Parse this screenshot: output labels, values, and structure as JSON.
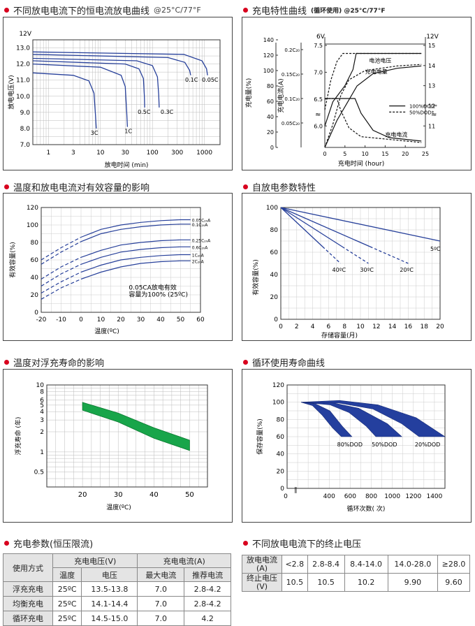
{
  "sections": {
    "s1": "不同放电电流下的恒电流放电曲线",
    "s1_suffix": "@25°C/77°F",
    "s2": "充电特性曲线",
    "s2_suffix": "(循环使用) @25°C/77°F",
    "s3": "温度和放电电流对有效容量的影响",
    "s4": "自放电参数特性",
    "s5": "温度对浮充寿命的影响",
    "s6": "循环使用寿命曲线",
    "s7": "充电参数(恒压限流)",
    "s8": "不同放电电流下的终止电压"
  },
  "chart_data": [
    {
      "id": "discharge",
      "type": "line",
      "title": "不同放电电流下的恒电流放电曲线 @25°C/77°F",
      "xlabel": "放电时间 (min)",
      "ylabel": "放电电压(V)",
      "y_unit_label": "12V",
      "x_scale": "log",
      "xlim": [
        0.5,
        2000
      ],
      "ylim": [
        7.0,
        13.5
      ],
      "xticks": [
        "1",
        "3",
        "10",
        "30",
        "100",
        "300",
        "1000"
      ],
      "yticks": [
        "7.0",
        "8.0",
        "9.0",
        "10.0",
        "11.0",
        "12.0",
        "13.0"
      ],
      "series": [
        {
          "name": "3C",
          "points": [
            [
              0.5,
              11.45
            ],
            [
              3,
              11.3
            ],
            [
              6,
              10.95
            ],
            [
              7.5,
              10.2
            ],
            [
              8,
              8.9
            ],
            [
              8.3,
              8.0
            ]
          ]
        },
        {
          "name": "1C",
          "points": [
            [
              0.5,
              12.0
            ],
            [
              10,
              11.8
            ],
            [
              25,
              11.3
            ],
            [
              30,
              10.6
            ],
            [
              32,
              9.0
            ],
            [
              33,
              8.1
            ]
          ]
        },
        {
          "name": "0.5C",
          "points": [
            [
              0.5,
              12.2
            ],
            [
              30,
              12.0
            ],
            [
              55,
              11.7
            ],
            [
              67,
              11.1
            ],
            [
              70,
              10.0
            ],
            [
              71,
              9.3
            ]
          ]
        },
        {
          "name": "0.3C",
          "points": [
            [
              0.5,
              12.35
            ],
            [
              50,
              12.2
            ],
            [
              100,
              11.9
            ],
            [
              125,
              11.2
            ],
            [
              132,
              10.1
            ],
            [
              135,
              9.3
            ]
          ]
        },
        {
          "name": "0.1C",
          "points": [
            [
              0.5,
              12.6
            ],
            [
              200,
              12.4
            ],
            [
              420,
              12.1
            ],
            [
              520,
              11.6
            ],
            [
              545,
              11.3
            ]
          ]
        },
        {
          "name": "0.05C",
          "points": [
            [
              0.5,
              12.75
            ],
            [
              400,
              12.6
            ],
            [
              900,
              12.2
            ],
            [
              1100,
              11.7
            ],
            [
              1150,
              11.3
            ]
          ]
        }
      ]
    },
    {
      "id": "charge",
      "type": "line",
      "title": "充电特性曲线(循环使用) @25°C/77°F",
      "xlabel": "充电时间 (hour)",
      "ylabel_left1": "充电量(%)",
      "ylabel_left2": "充电电流(A)",
      "ylabel_right": "",
      "xlim": [
        0,
        25
      ],
      "xticks": [
        "0",
        "5",
        "10",
        "15",
        "20",
        "25"
      ],
      "y1_ticks": [
        "0",
        "20",
        "40",
        "60",
        "80",
        "100",
        "120",
        "140"
      ],
      "y2_ticks": [
        "0.05C₂₀",
        "0.1C₂₀",
        "0.15C₂₀",
        "0.2C₂₀"
      ],
      "y3_top_label": "6V",
      "y3_ticks": [
        "6.0",
        "6.5",
        "7.0",
        "7.5"
      ],
      "y4_top_label": "12V",
      "y4_ticks": [
        "11",
        "12",
        "13",
        "14",
        "15"
      ],
      "legend": [
        "100%DOD*",
        "50%DOD*"
      ],
      "annotations": [
        "电池电压",
        "充电电量",
        "充电电流"
      ],
      "series": [
        {
          "name": "100%DOD*",
          "role": "电池电压",
          "points": [
            [
              0,
              6.0
            ],
            [
              2,
              6.45
            ],
            [
              5,
              6.75
            ],
            [
              7,
              7.05
            ],
            [
              7.8,
              7.35
            ],
            [
              24,
              7.35
            ]
          ]
        },
        {
          "name": "50%DOD*",
          "role": "电池电压",
          "points": [
            [
              0,
              6.3
            ],
            [
              1.5,
              6.85
            ],
            [
              3,
              7.2
            ],
            [
              4.5,
              7.35
            ],
            [
              24,
              7.35
            ]
          ]
        },
        {
          "name": "100%DOD*",
          "role": "充电电量",
          "points": [
            [
              0,
              0
            ],
            [
              3,
              35
            ],
            [
              6,
              62
            ],
            [
              8,
              80
            ],
            [
              12,
              96
            ],
            [
              18,
              103
            ],
            [
              24,
              106
            ]
          ]
        },
        {
          "name": "50%DOD*",
          "role": "充电电量",
          "points": [
            [
              0,
              0
            ],
            [
              2,
              30
            ],
            [
              4,
              68
            ],
            [
              6,
              88
            ],
            [
              10,
              100
            ],
            [
              18,
              106
            ],
            [
              24,
              108
            ]
          ]
        },
        {
          "name": "100%DOD*",
          "role": "充电电流",
          "points": [
            [
              0,
              0.1
            ],
            [
              7.5,
              0.1
            ],
            [
              9,
              0.07
            ],
            [
              12,
              0.035
            ],
            [
              16,
              0.02
            ],
            [
              24,
              0.013
            ]
          ]
        },
        {
          "name": "50%DOD*",
          "role": "充电电流",
          "points": [
            [
              0,
              0.1
            ],
            [
              3,
              0.1
            ],
            [
              4,
              0.075
            ],
            [
              6,
              0.04
            ],
            [
              9,
              0.022
            ],
            [
              24,
              0.01
            ]
          ]
        }
      ]
    },
    {
      "id": "temp_capacity",
      "type": "line",
      "title": "温度和放电电流对有效容量的影响",
      "xlabel": "温度(ºC)",
      "ylabel": "有效容量(%)",
      "xlim": [
        -20,
        60
      ],
      "ylim": [
        0,
        120
      ],
      "xticks": [
        "-20",
        "-10",
        "0",
        "10",
        "20",
        "30",
        "40",
        "50",
        "60"
      ],
      "yticks": [
        "0",
        "20",
        "40",
        "60",
        "80",
        "100",
        "120"
      ],
      "note_line1": "0.05CA放电有效",
      "note_line2": "容量为100% (25ºC)",
      "series": [
        {
          "name": "0.05C₂₀A",
          "points": [
            [
              -20,
              60
            ],
            [
              -10,
              74
            ],
            [
              0,
              86
            ],
            [
              10,
              95
            ],
            [
              20,
              100
            ],
            [
              30,
              103
            ],
            [
              40,
              105
            ],
            [
              50,
              106
            ],
            [
              55,
              106
            ]
          ]
        },
        {
          "name": "0.1C₂₀A",
          "points": [
            [
              -20,
              55
            ],
            [
              -10,
              69
            ],
            [
              0,
              81
            ],
            [
              10,
              90
            ],
            [
              20,
              95
            ],
            [
              30,
              98
            ],
            [
              40,
              100
            ],
            [
              50,
              101
            ],
            [
              55,
              101
            ]
          ]
        },
        {
          "name": "0.25C₂₀A",
          "points": [
            [
              -20,
              38
            ],
            [
              -10,
              52
            ],
            [
              0,
              63
            ],
            [
              10,
              71
            ],
            [
              20,
              77
            ],
            [
              30,
              80
            ],
            [
              40,
              82
            ],
            [
              50,
              83
            ],
            [
              55,
              83
            ]
          ]
        },
        {
          "name": "0.6C₂₀A",
          "points": [
            [
              -20,
              30
            ],
            [
              -10,
              44
            ],
            [
              0,
              55
            ],
            [
              10,
              63
            ],
            [
              20,
              69
            ],
            [
              30,
              72
            ],
            [
              40,
              74
            ],
            [
              50,
              75
            ],
            [
              55,
              75
            ]
          ]
        },
        {
          "name": "1C₂₀A",
          "points": [
            [
              -20,
              22
            ],
            [
              -10,
              35
            ],
            [
              0,
              46
            ],
            [
              10,
              54
            ],
            [
              20,
              60
            ],
            [
              30,
              63
            ],
            [
              40,
              65
            ],
            [
              50,
              66
            ],
            [
              55,
              66
            ]
          ]
        },
        {
          "name": "2C₂₀A",
          "points": [
            [
              -20,
              15
            ],
            [
              -10,
              28
            ],
            [
              0,
              38
            ],
            [
              10,
              46
            ],
            [
              20,
              52
            ],
            [
              30,
              56
            ],
            [
              40,
              58
            ],
            [
              50,
              59
            ],
            [
              55,
              59
            ]
          ]
        }
      ]
    },
    {
      "id": "self_discharge",
      "type": "line",
      "title": "自放电参数特性",
      "xlabel": "存储容量(月)",
      "ylabel": "有效容量(%)",
      "xlim": [
        0,
        20
      ],
      "ylim": [
        0,
        100
      ],
      "xticks": [
        "0",
        "2",
        "4",
        "6",
        "8",
        "10",
        "12",
        "14",
        "16",
        "18",
        "20"
      ],
      "yticks": [
        "0",
        "20",
        "40",
        "60",
        "80",
        "100"
      ],
      "series": [
        {
          "name": "5ºC",
          "points": [
            [
              0,
              100
            ],
            [
              20,
              70
            ]
          ]
        },
        {
          "name": "20ºC",
          "points": [
            [
              0,
              100
            ],
            [
              16,
              50
            ]
          ]
        },
        {
          "name": "30ºC",
          "points": [
            [
              0,
              100
            ],
            [
              11,
              50
            ]
          ]
        },
        {
          "name": "40ºC",
          "points": [
            [
              0,
              100
            ],
            [
              7.5,
              50
            ]
          ]
        }
      ]
    },
    {
      "id": "float_life",
      "type": "area",
      "title": "温度对浮充寿命的影响",
      "xlabel": "温度(ºC)",
      "ylabel": "浮充寿命 (年)",
      "y_scale": "log",
      "xlim": [
        10,
        55
      ],
      "ylim": [
        0.3,
        10
      ],
      "xticks": [
        "20",
        "30",
        "40",
        "50"
      ],
      "yticks": [
        "0.5",
        "1",
        "2",
        "3",
        "4",
        "5",
        "6",
        "8",
        "10"
      ],
      "series": [
        {
          "name": "upper",
          "points": [
            [
              20,
              5.5
            ],
            [
              30,
              3.8
            ],
            [
              40,
              2.3
            ],
            [
              50,
              1.5
            ]
          ]
        },
        {
          "name": "lower",
          "points": [
            [
              20,
              4.2
            ],
            [
              30,
              2.8
            ],
            [
              40,
              1.6
            ],
            [
              50,
              1.05
            ]
          ]
        }
      ]
    },
    {
      "id": "cycle_life",
      "type": "area",
      "title": "循环使用寿命曲线",
      "xlabel": "循环次数( 次)",
      "ylabel": "保存容量(%)",
      "xlim": [
        0,
        1500
      ],
      "ylim": [
        0,
        120
      ],
      "xticks": [
        "0",
        "400",
        "600",
        "800",
        "1000",
        "1200",
        "1400"
      ],
      "yticks": [
        "0",
        "20",
        "40",
        "60",
        "80",
        "100",
        "120"
      ],
      "series": [
        {
          "name": "80%DOD",
          "upper": [
            [
              0,
              100
            ],
            [
              150,
              98
            ],
            [
              300,
              90
            ],
            [
              430,
              72
            ],
            [
              530,
              60
            ]
          ],
          "lower": [
            [
              0,
              100
            ],
            [
              120,
              96
            ],
            [
              220,
              85
            ],
            [
              330,
              70
            ],
            [
              420,
              60
            ]
          ]
        },
        {
          "name": "50%DOD",
          "upper": [
            [
              0,
              100
            ],
            [
              300,
              100
            ],
            [
              600,
              93
            ],
            [
              900,
              75
            ],
            [
              1050,
              60
            ]
          ],
          "lower": [
            [
              0,
              100
            ],
            [
              300,
              97
            ],
            [
              500,
              88
            ],
            [
              680,
              72
            ],
            [
              780,
              60
            ]
          ]
        },
        {
          "name": "20%DOD",
          "upper": [
            [
              0,
              100
            ],
            [
              400,
              102
            ],
            [
              800,
              97
            ],
            [
              1200,
              82
            ],
            [
              1500,
              60
            ]
          ],
          "lower": [
            [
              0,
              100
            ],
            [
              400,
              99
            ],
            [
              750,
              92
            ],
            [
              1050,
              75
            ],
            [
              1230,
              60
            ]
          ]
        }
      ]
    }
  ],
  "table1": {
    "h_use": "使用方式",
    "h_voltage": "充电电压(V)",
    "h_current": "充电电流(A)",
    "h_temp": "温度",
    "h_volt": "电压",
    "h_max": "最大电流",
    "h_rec": "推荐电流",
    "rows": [
      {
        "mode": "浮充充电",
        "temp": "25ºC",
        "volt": "13.5-13.8",
        "max": "7.0",
        "rec": "2.8-4.2"
      },
      {
        "mode": "均衡充电",
        "temp": "25ºC",
        "volt": "14.1-14.4",
        "max": "7.0",
        "rec": "2.8-4.2"
      },
      {
        "mode": "循环充电",
        "temp": "25ºC",
        "volt": "14.5-15.0",
        "max": "7.0",
        "rec": "4.2"
      }
    ]
  },
  "table2": {
    "r1_label_a": "放电电流",
    "r1_label_b": "(A)",
    "r2_label_a": "终止电压",
    "r2_label_b": "(V)",
    "currents": [
      "<2.8",
      "2.8-8.4",
      "8.4-14.0",
      "14.0-28.0",
      "≥28.0"
    ],
    "voltages": [
      "10.5",
      "10.5",
      "10.2",
      "9.90",
      "9.60"
    ]
  }
}
